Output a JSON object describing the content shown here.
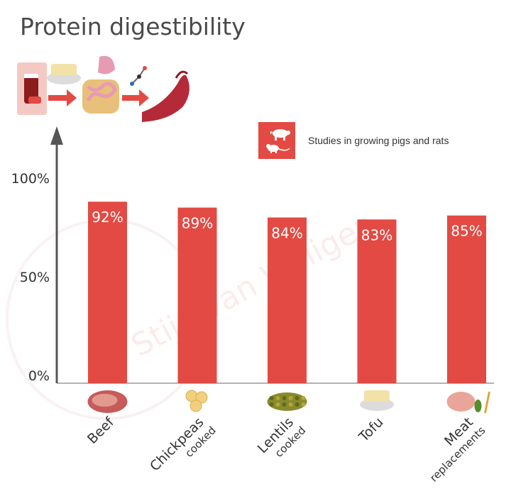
{
  "page": {
    "title": "Protein digestibility"
  },
  "legend": {
    "label": "Studies in growing pigs and rats",
    "icon": "pig-rat-icon"
  },
  "watermark": "Stijn van Willigen",
  "colors": {
    "bar": "#e24a43",
    "axis": "#555555",
    "label_text": "#ffffff",
    "text": "#333333"
  },
  "chart_data": {
    "type": "bar",
    "title": "Protein digestibility",
    "ylim": [
      0,
      100
    ],
    "y_ticks": [
      {
        "value": 0,
        "label": "0%"
      },
      {
        "value": 50,
        "label": "50%"
      },
      {
        "value": 100,
        "label": "100%"
      }
    ],
    "categories": [
      "Beef",
      "Chickpeas",
      "Lentils",
      "Tofu",
      "Meat"
    ],
    "subcategories": [
      "",
      "cooked",
      "cooked",
      "",
      "replacements"
    ],
    "values": [
      92,
      89,
      84,
      83,
      85
    ],
    "data_labels": [
      "92%",
      "89%",
      "84%",
      "83%",
      "85%"
    ],
    "grid": false,
    "legend_position": "top-right"
  }
}
